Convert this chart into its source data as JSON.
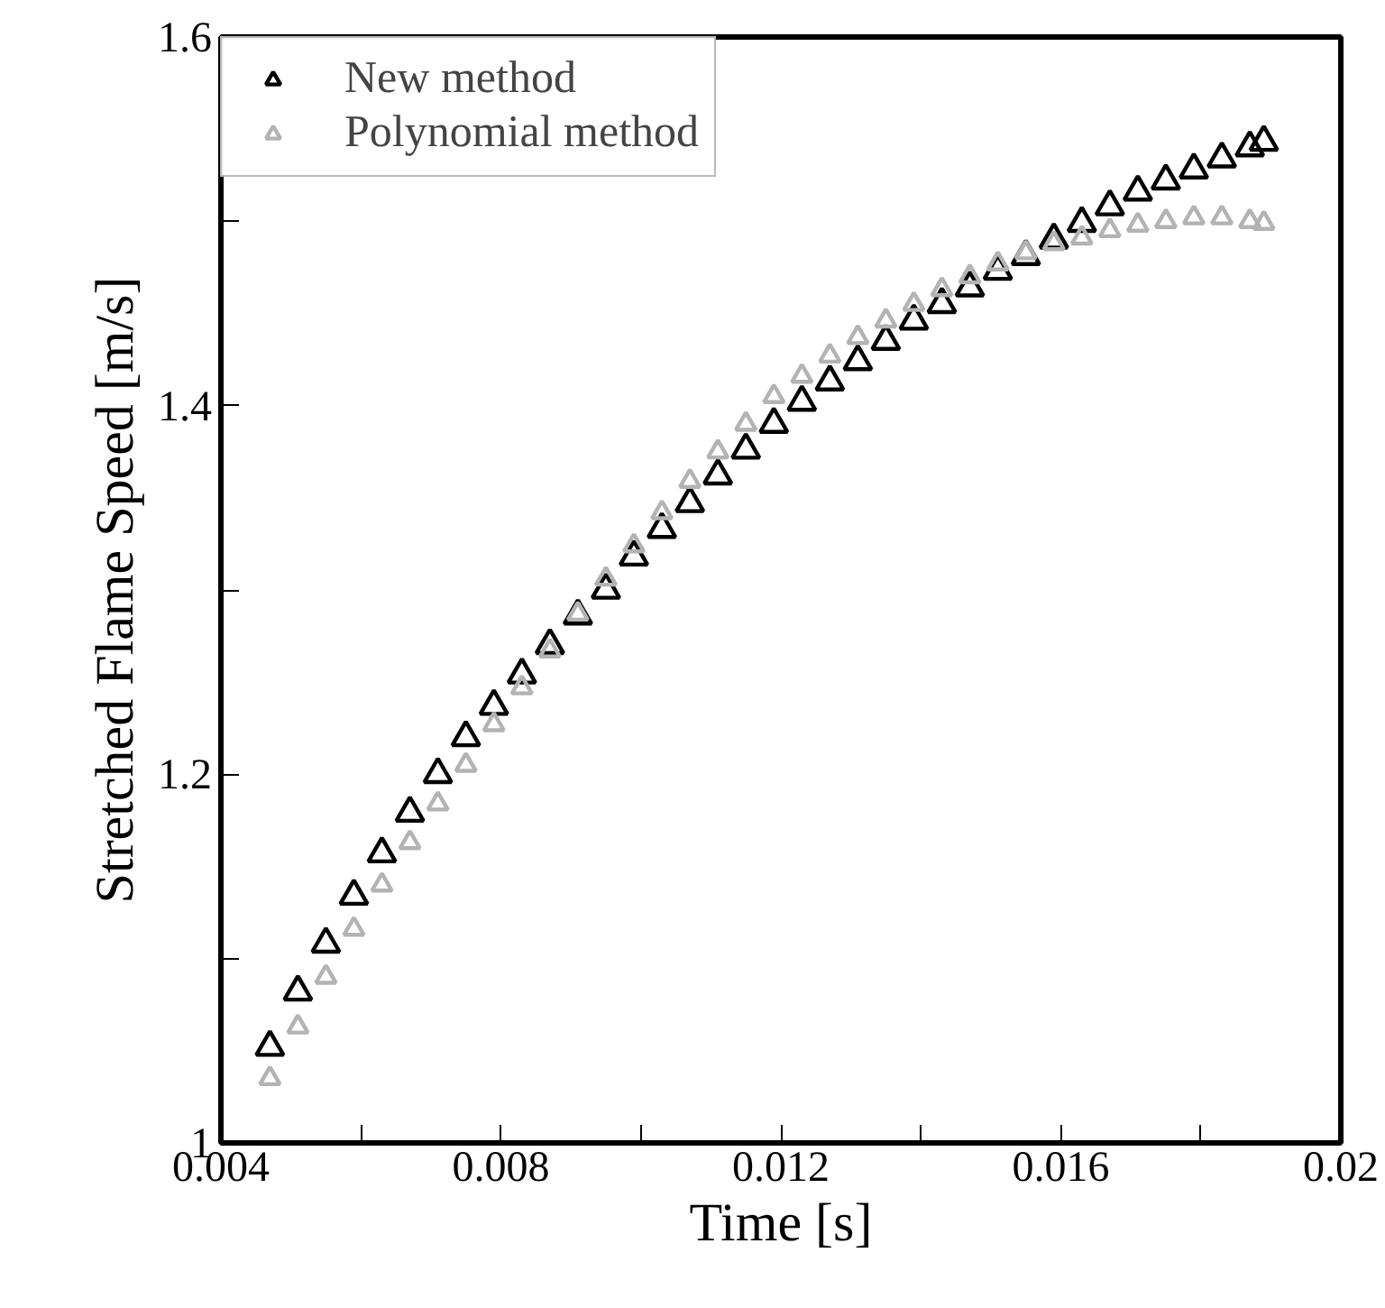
{
  "chart_data": {
    "type": "scatter",
    "xlabel": "Time [s]",
    "ylabel": "Stretched Flame Speed [m/s]",
    "x": [
      0.0047,
      0.0051,
      0.0055,
      0.0059,
      0.0063,
      0.0067,
      0.0071,
      0.0075,
      0.0079,
      0.0083,
      0.0087,
      0.0091,
      0.0095,
      0.0099,
      0.0103,
      0.0107,
      0.0111,
      0.0115,
      0.0119,
      0.0123,
      0.0127,
      0.0131,
      0.0135,
      0.0139,
      0.0143,
      0.0147,
      0.0151,
      0.0155,
      0.0159,
      0.0163,
      0.0167,
      0.0171,
      0.0175,
      0.0179,
      0.0183,
      0.0187,
      0.0189
    ],
    "series": [
      {
        "name": "New method",
        "color": "#000000",
        "values": [
          1.052,
          1.082,
          1.108,
          1.134,
          1.157,
          1.179,
          1.2,
          1.22,
          1.237,
          1.254,
          1.27,
          1.286,
          1.3,
          1.318,
          1.333,
          1.347,
          1.362,
          1.376,
          1.39,
          1.402,
          1.413,
          1.424,
          1.435,
          1.446,
          1.455,
          1.464,
          1.473,
          1.481,
          1.49,
          1.499,
          1.508,
          1.516,
          1.522,
          1.528,
          1.534,
          1.54,
          1.543
        ]
      },
      {
        "name": "Polynomial method",
        "color": "#b3b3b3",
        "values": [
          1.035,
          1.063,
          1.09,
          1.116,
          1.14,
          1.163,
          1.184,
          1.205,
          1.227,
          1.247,
          1.267,
          1.287,
          1.306,
          1.324,
          1.342,
          1.359,
          1.375,
          1.39,
          1.405,
          1.416,
          1.427,
          1.437,
          1.446,
          1.455,
          1.463,
          1.47,
          1.477,
          1.483,
          1.488,
          1.491,
          1.495,
          1.498,
          1.5,
          1.502,
          1.502,
          1.5,
          1.499
        ]
      }
    ],
    "xlim": [
      0.004,
      0.02
    ],
    "ylim": [
      1,
      1.6
    ],
    "xticks": [
      0.004,
      {
        "value": 0.006,
        "label": null
      },
      0.008,
      {
        "value": 0.01,
        "label": null
      },
      0.012,
      {
        "value": 0.014,
        "label": null
      },
      0.016,
      {
        "value": 0.018,
        "label": null
      },
      0.02
    ],
    "yticks": [
      1,
      {
        "value": 1.1,
        "label": null
      },
      1.2,
      {
        "value": 1.3,
        "label": null
      },
      1.4,
      {
        "value": 1.5,
        "label": null
      },
      1.6
    ],
    "marker": "triangle",
    "legend": "top left",
    "grid": false
  }
}
